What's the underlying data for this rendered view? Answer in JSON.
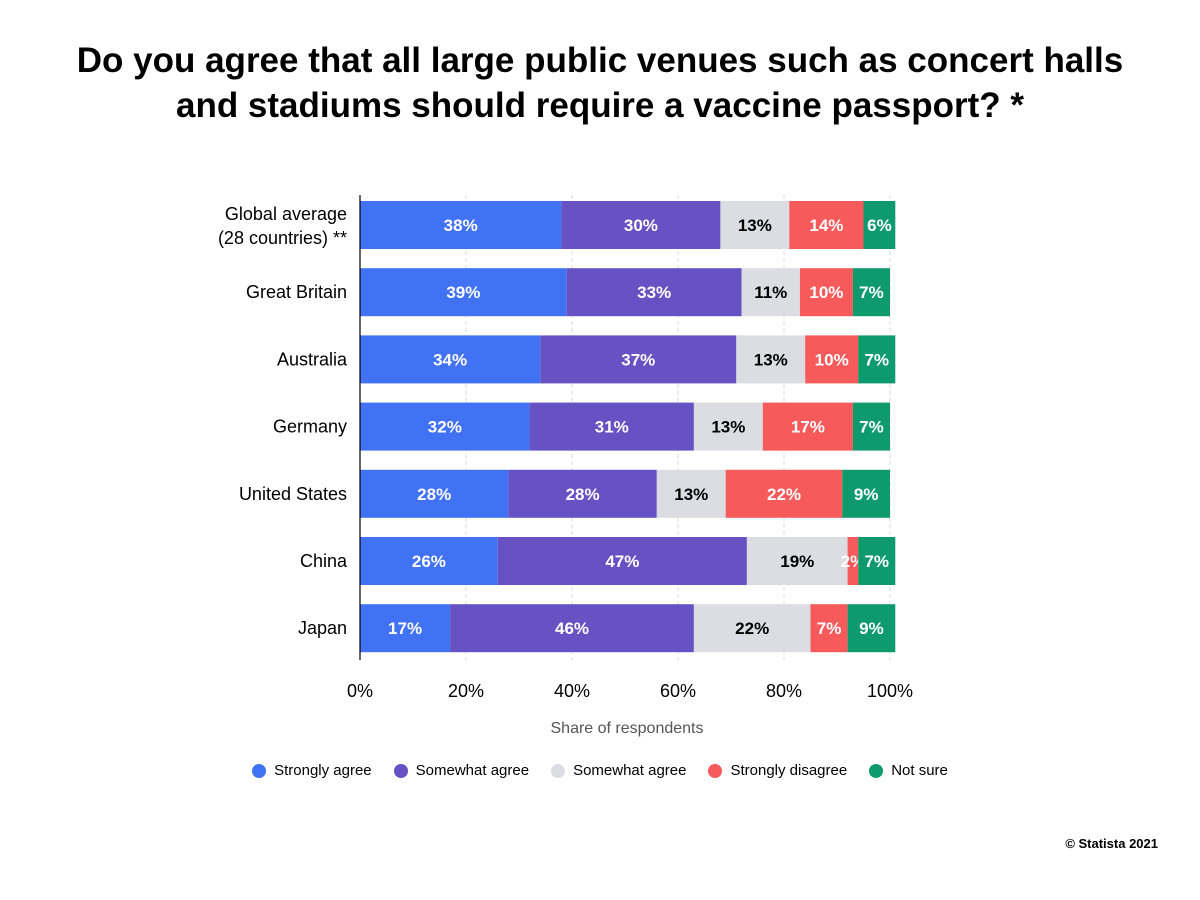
{
  "chart_data": {
    "type": "bar",
    "orientation": "horizontal",
    "stacked": true,
    "title": [
      "Do you agree that all large public venues such as concert halls",
      "and stadiums should require a vaccine passport? *"
    ],
    "xlabel": "Share of respondents",
    "ylabel": "",
    "xlim": [
      0,
      100
    ],
    "x_ticks": [
      "0%",
      "20%",
      "40%",
      "60%",
      "80%",
      "100%"
    ],
    "grid": true,
    "legend_position": "bottom",
    "categories": [
      [
        "Global average",
        "(28 countries) **"
      ],
      [
        "Great Britain"
      ],
      [
        "Australia"
      ],
      [
        "Germany"
      ],
      [
        "United States"
      ],
      [
        "China"
      ],
      [
        "Japan"
      ]
    ],
    "series": [
      {
        "name": "Strongly agree",
        "color": "#4272f4",
        "label_color": "#ffffff",
        "values": [
          38,
          39,
          34,
          32,
          28,
          26,
          17
        ]
      },
      {
        "name": "Somewhat agree",
        "color": "#6652c2",
        "label_color": "#ffffff",
        "values": [
          30,
          33,
          37,
          31,
          28,
          47,
          46
        ]
      },
      {
        "name": "Somewhat agree",
        "color": "#dcdde2",
        "label_color": "#000000",
        "values": [
          13,
          11,
          13,
          13,
          13,
          19,
          22
        ]
      },
      {
        "name": "Strongly disagree",
        "color": "#f65a5b",
        "label_color": "#ffffff",
        "values": [
          14,
          10,
          10,
          17,
          22,
          2,
          7
        ]
      },
      {
        "name": "Not sure",
        "color": "#0f9a6d",
        "label_color": "#ffffff",
        "values": [
          6,
          7,
          7,
          7,
          9,
          7,
          9
        ]
      }
    ]
  },
  "source": "© Statista 2021"
}
